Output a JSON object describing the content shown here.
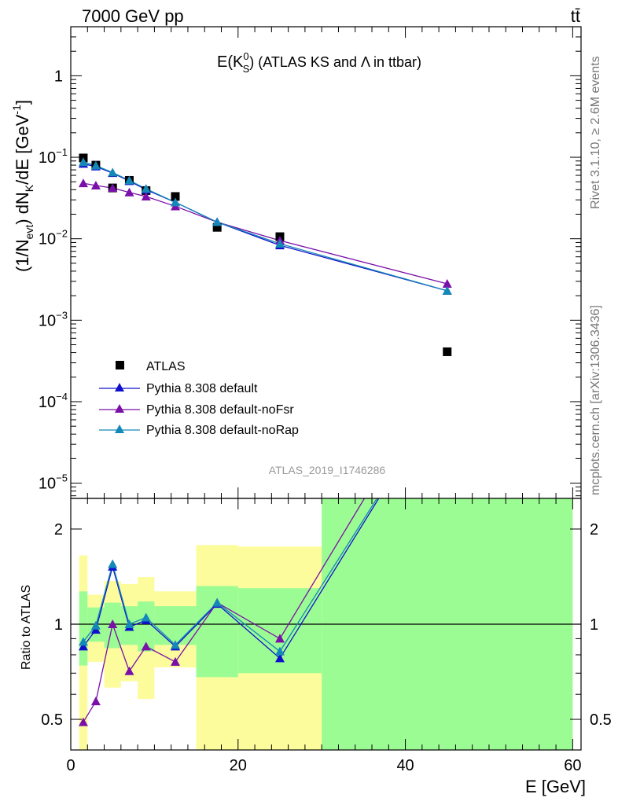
{
  "header": {
    "left": "7000 GeV pp",
    "right": "tt̄"
  },
  "side_labels": {
    "rivet": "Rivet 3.1.10, ≥ 2.6M events",
    "mcplots": "mcplots.cern.ch [arXiv:1306.3436]"
  },
  "watermark": "ATLAS_2019_I1746286",
  "colors": {
    "data": "#000000",
    "default": "#1010cc",
    "noFsr": "#7a10a8",
    "noRap": "#1488b8",
    "band_inner": "#9cfc94",
    "band_outer": "#fcfc9c"
  },
  "chart_data": [
    {
      "type": "scatter",
      "title": "E(K0S) (ATLAS KS and Λ in ttbar)",
      "title_parts": {
        "main": "E(K",
        "sup": "0",
        "sub": "S",
        "tail": ") (ATLAS KS and Λ in ttbar)"
      },
      "ylabel": "(1/Nevt) dNK/dE [GeV-1]",
      "ylabel_parts": {
        "a": "(1/N",
        "b": "evt",
        "c": ") dN",
        "d": "K",
        "e": "/dE [GeV",
        "f": "-1",
        "g": "]"
      },
      "yscale": "log",
      "ylim": [
        6.5e-06,
        4.0
      ],
      "xlim": [
        0,
        61
      ],
      "legend_placement": "lower-left",
      "yticks": [
        {
          "value": 1,
          "label": "1"
        },
        {
          "value": 0.1,
          "label": "10",
          "exp": "−1"
        },
        {
          "value": 0.01,
          "label": "10",
          "exp": "−2"
        },
        {
          "value": 0.001,
          "label": "10",
          "exp": "−3"
        },
        {
          "value": 0.0001,
          "label": "10",
          "exp": "−4"
        },
        {
          "value": 1e-05,
          "label": "10",
          "exp": "−5"
        }
      ],
      "series": [
        {
          "name": "ATLAS",
          "key": "data",
          "marker": "square",
          "x": [
            1.5,
            3,
            5,
            7,
            9,
            12.5,
            17.5,
            25,
            45
          ],
          "y": [
            0.098,
            0.08,
            0.042,
            0.052,
            0.039,
            0.033,
            0.0138,
            0.0106,
            0.00041
          ]
        },
        {
          "name": "Pythia 8.308 default",
          "key": "default",
          "marker": "triangle",
          "x": [
            1.5,
            3,
            5,
            7,
            9,
            12.5,
            17.5,
            25,
            45
          ],
          "y": [
            0.083,
            0.077,
            0.064,
            0.051,
            0.04,
            0.028,
            0.016,
            0.0083,
            0.0023
          ]
        },
        {
          "name": "Pythia 8.308 default-noFsr",
          "key": "noFsr",
          "marker": "triangle",
          "x": [
            1.5,
            3,
            5,
            7,
            9,
            12.5,
            17.5,
            25,
            45
          ],
          "y": [
            0.048,
            0.045,
            0.042,
            0.037,
            0.033,
            0.025,
            0.016,
            0.0095,
            0.0028
          ]
        },
        {
          "name": "Pythia 8.308 default-noRap",
          "key": "noRap",
          "marker": "triangle",
          "x": [
            1.5,
            3,
            5,
            7,
            9,
            12.5,
            17.5,
            25,
            45
          ],
          "y": [
            0.087,
            0.079,
            0.065,
            0.052,
            0.041,
            0.028,
            0.016,
            0.0087,
            0.0023
          ]
        }
      ]
    },
    {
      "type": "line",
      "ylabel": "Ratio to ATLAS",
      "xlabel": "E [GeV]",
      "yscale": "log",
      "ylim": [
        0.4,
        2.5
      ],
      "xlim": [
        0,
        61
      ],
      "yticks": [
        {
          "value": 0.5,
          "label": "0.5"
        },
        {
          "value": 1,
          "label": "1"
        },
        {
          "value": 2,
          "label": "2"
        }
      ],
      "xticks": [
        {
          "value": 0,
          "label": "0"
        },
        {
          "value": 20,
          "label": "20"
        },
        {
          "value": 40,
          "label": "40"
        },
        {
          "value": 60,
          "label": "60"
        }
      ],
      "reference_line": 1,
      "bands": [
        {
          "x0": 1,
          "x1": 2,
          "outer": [
            0.36,
            1.65
          ],
          "inner": [
            0.74,
            1.27
          ]
        },
        {
          "x0": 2,
          "x1": 4,
          "outer": [
            0.76,
            1.24
          ],
          "inner": [
            0.88,
            1.13
          ]
        },
        {
          "x0": 4,
          "x1": 6,
          "outer": [
            0.63,
            1.37
          ],
          "inner": [
            0.84,
            1.17
          ]
        },
        {
          "x0": 6,
          "x1": 8,
          "outer": [
            0.66,
            1.34
          ],
          "inner": [
            0.86,
            1.14
          ]
        },
        {
          "x0": 8,
          "x1": 10,
          "outer": [
            0.58,
            1.41
          ],
          "inner": [
            0.82,
            1.18
          ]
        },
        {
          "x0": 10,
          "x1": 15,
          "outer": [
            0.73,
            1.27
          ],
          "inner": [
            0.86,
            1.14
          ]
        },
        {
          "x0": 15,
          "x1": 20,
          "outer": [
            0.25,
            1.78
          ],
          "inner": [
            0.68,
            1.32
          ]
        },
        {
          "x0": 20,
          "x1": 30,
          "outer": [
            0.25,
            1.76
          ],
          "inner": [
            0.7,
            1.3
          ]
        },
        {
          "x0": 30,
          "x1": 60,
          "outer": [
            0.25,
            3.0
          ],
          "inner": [
            0.25,
            3.0
          ]
        }
      ],
      "series": [
        {
          "name": "Pythia 8.308 default",
          "key": "default",
          "x": [
            1.5,
            3,
            5,
            7,
            9,
            12.5,
            17.5,
            25,
            45
          ],
          "y": [
            0.85,
            0.96,
            1.52,
            0.98,
            1.03,
            0.85,
            1.16,
            0.78,
            5.6
          ]
        },
        {
          "name": "Pythia 8.308 default-noFsr",
          "key": "noFsr",
          "x": [
            1.5,
            3,
            5,
            7,
            9,
            12.5,
            17.5,
            25,
            45
          ],
          "y": [
            0.49,
            0.57,
            1.0,
            0.71,
            0.85,
            0.76,
            1.17,
            0.9,
            6.8
          ]
        },
        {
          "name": "Pythia 8.308 default-noRap",
          "key": "noRap",
          "x": [
            1.5,
            3,
            5,
            7,
            9,
            12.5,
            17.5,
            25,
            45
          ],
          "y": [
            0.88,
            0.99,
            1.55,
            1.0,
            1.05,
            0.86,
            1.17,
            0.82,
            5.6
          ]
        }
      ]
    }
  ]
}
